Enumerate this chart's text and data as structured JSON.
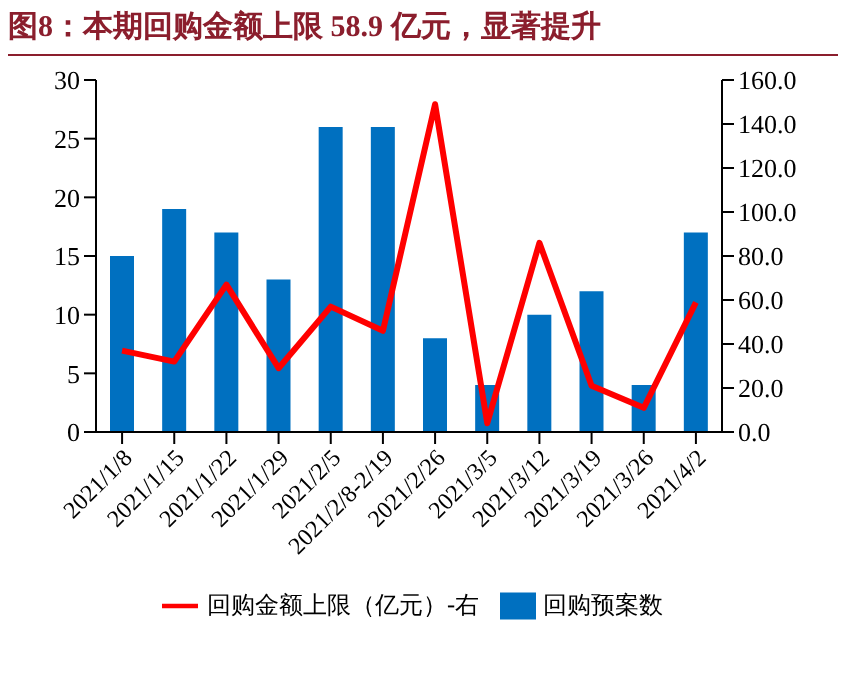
{
  "chart_data": {
    "type": "bar",
    "title": "图8：本期回购金额上限 58.9 亿元，显著提升",
    "categories": [
      "2021/1/8",
      "2021/1/15",
      "2021/1/22",
      "2021/1/29",
      "2021/2/5",
      "2021/2/8-2/19",
      "2021/2/26",
      "2021/3/5",
      "2021/3/12",
      "2021/3/19",
      "2021/3/26",
      "2021/4/2"
    ],
    "series": [
      {
        "name": "回购预案数",
        "color": "#0070c0",
        "values": [
          15,
          19,
          17,
          13,
          26,
          26,
          8,
          4,
          10,
          12,
          4,
          17
        ]
      },
      {
        "name": "回购金额上限（亿元）-右",
        "type": "line",
        "axis": "y2",
        "color": "#ff0000",
        "values": [
          37,
          32,
          67,
          29,
          57,
          46,
          149,
          4,
          86,
          21,
          11,
          58.9
        ]
      }
    ],
    "ylim": [
      0,
      30
    ],
    "yticks": [
      0,
      5,
      10,
      15,
      20,
      25,
      30
    ],
    "y2lim": [
      0,
      160
    ],
    "y2ticks": [
      {
        "value": 0,
        "label": "0.0"
      },
      {
        "value": 20,
        "label": "20.0"
      },
      {
        "value": 40,
        "label": "40.0"
      },
      {
        "value": 60,
        "label": "60.0"
      },
      {
        "value": 80,
        "label": "80.0"
      },
      {
        "value": 100,
        "label": "100.0"
      },
      {
        "value": 120,
        "label": "120.0"
      },
      {
        "value": 140,
        "label": "140.0"
      },
      {
        "value": 160,
        "label": "160.0"
      }
    ],
    "grid": false,
    "legend": "bottom",
    "marker": "none"
  }
}
